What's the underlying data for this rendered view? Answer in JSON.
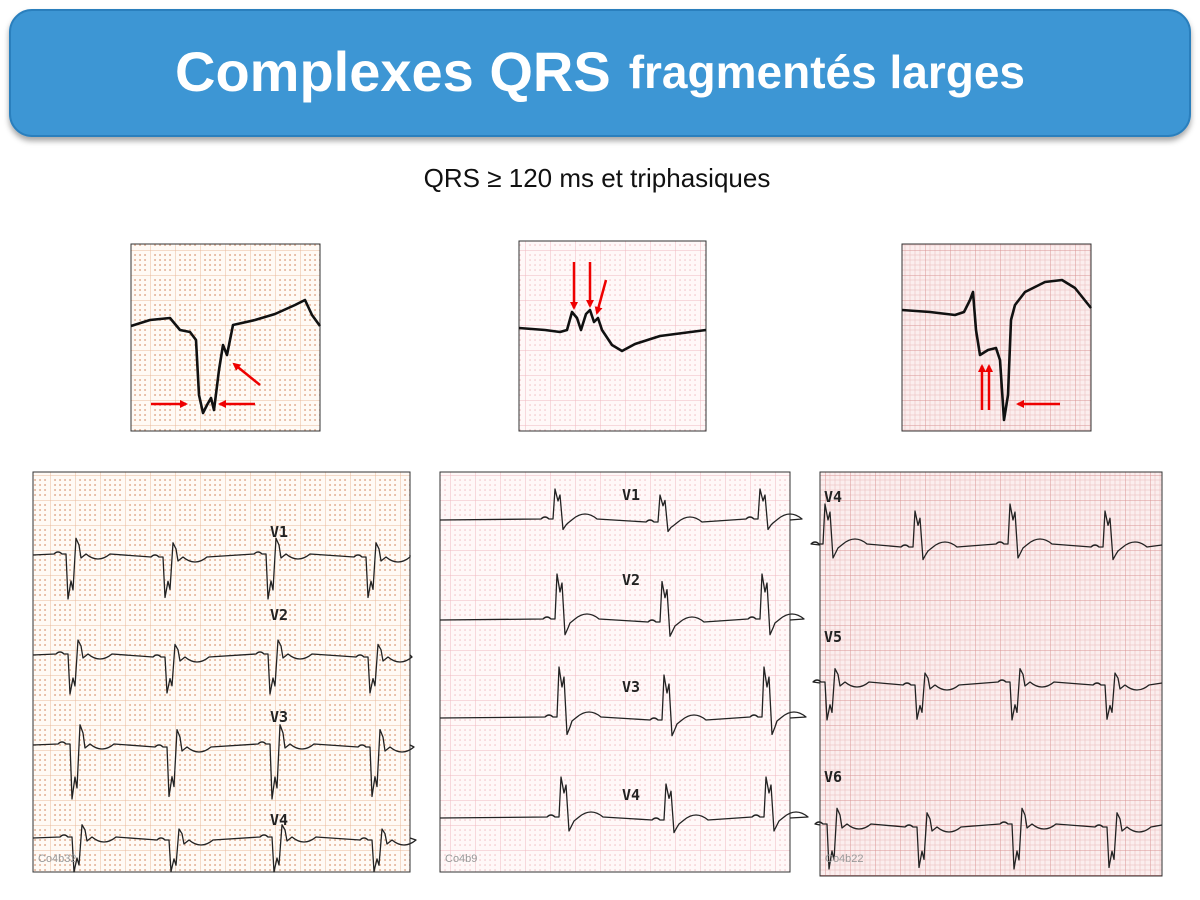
{
  "header": {
    "title_main": "Complexes QRS",
    "title_secondary": "fragmentés larges"
  },
  "subtitle": "QRS ≥ 120 ms et triphasiques",
  "ecg_panels": [
    {
      "leads": [
        "V1",
        "V2",
        "V3",
        "V4"
      ],
      "code": "Co4b32"
    },
    {
      "leads": [
        "V1",
        "V2",
        "V3",
        "V4"
      ],
      "code": "Co4b9"
    },
    {
      "leads": [
        "V4",
        "V5",
        "V6"
      ],
      "code": "Co4b22"
    }
  ]
}
